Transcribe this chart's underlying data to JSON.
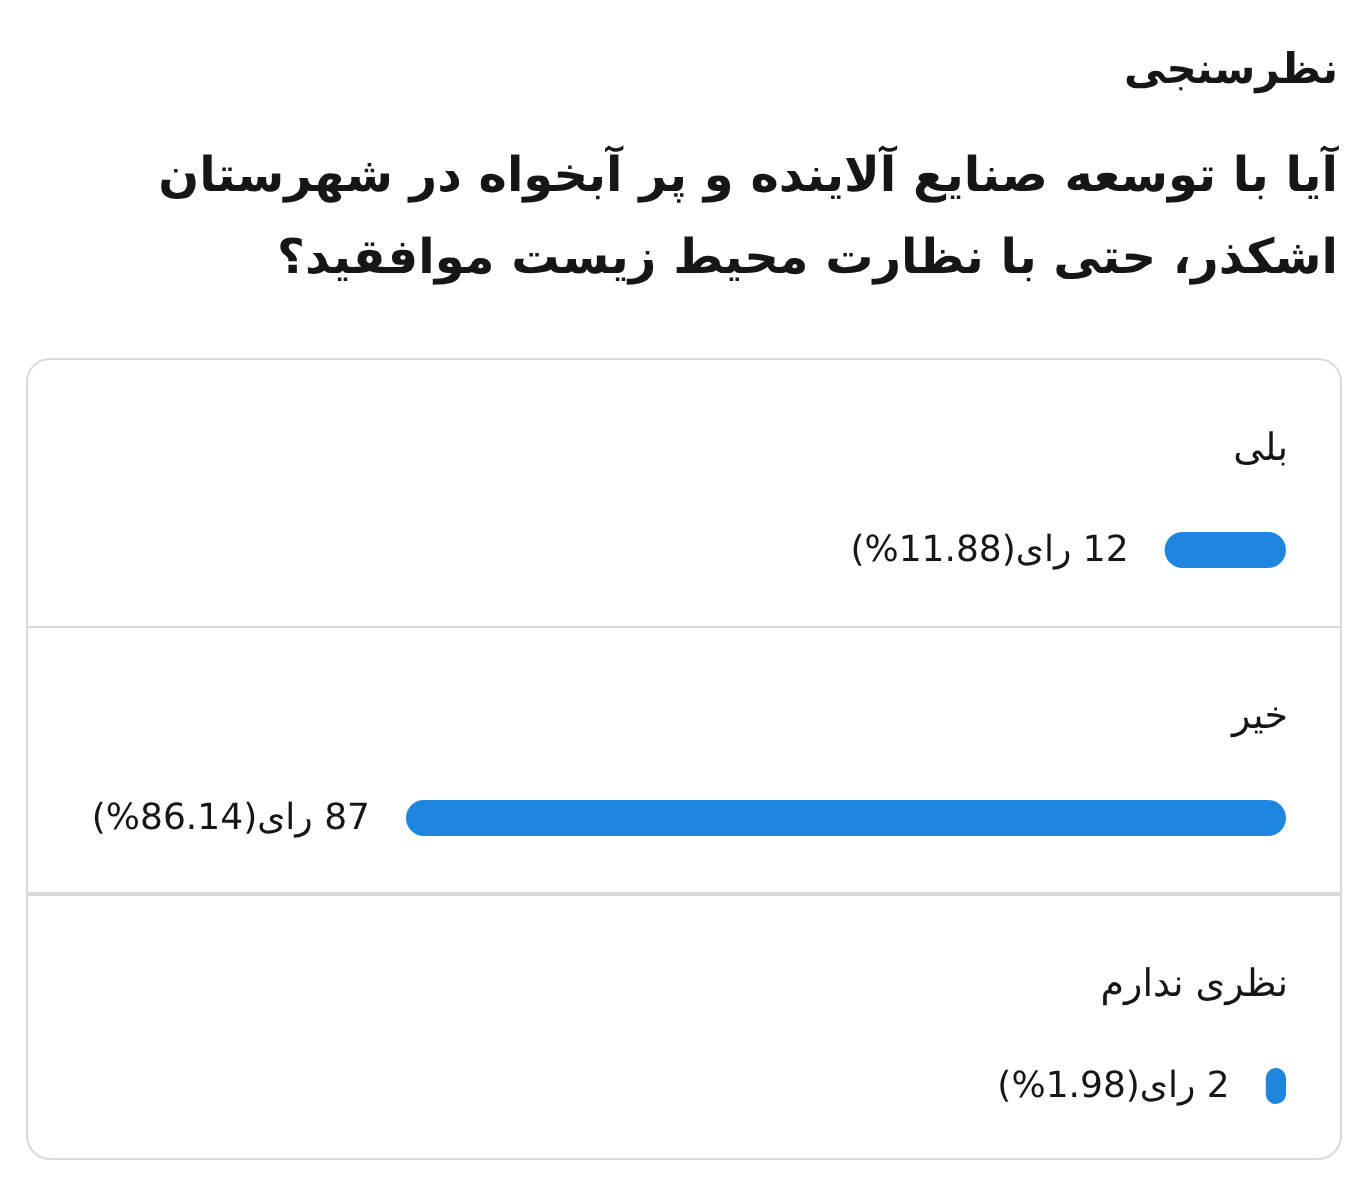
{
  "chart_data": {
    "type": "bar",
    "orientation": "horizontal",
    "title": "نظرسنجی",
    "subtitle": "آیا با توسعه صنایع آلاینده و پر آبخواه در شهرستان اشکذر، حتی با نظارت محیط زیست موافقید؟",
    "categories": [
      "بلی",
      "خیر",
      "نظری ندارم"
    ],
    "values": [
      12,
      87,
      2
    ],
    "value_labels": [
      "12 رای(11.88%)",
      "87 رای(86.14%)",
      "2 رای(1.98%)"
    ],
    "color": "#1f86e0",
    "tick_labels": "y"
  }
}
